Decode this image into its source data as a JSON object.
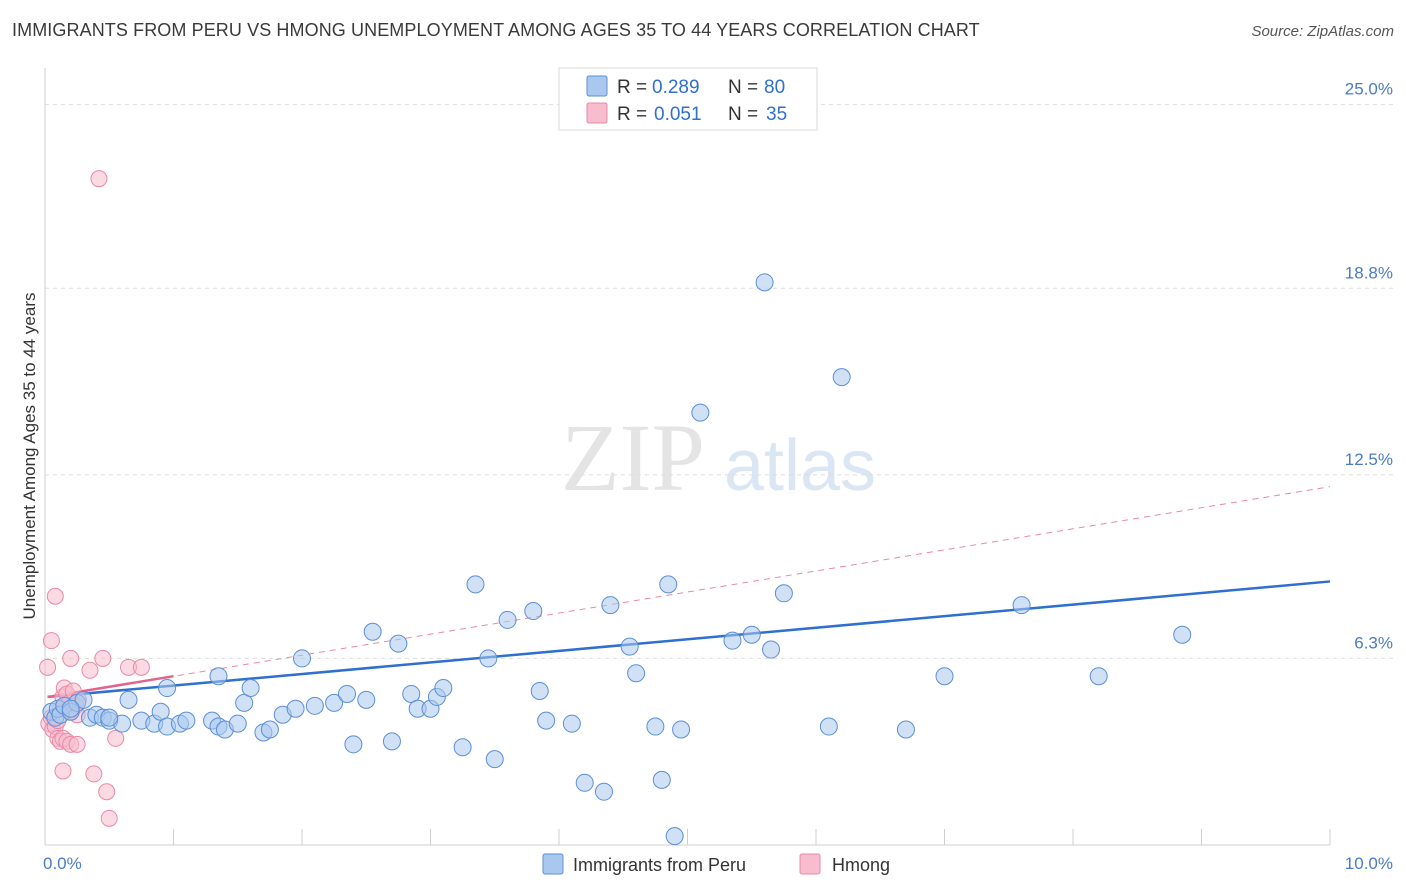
{
  "title": "IMMIGRANTS FROM PERU VS HMONG UNEMPLOYMENT AMONG AGES 35 TO 44 YEARS CORRELATION CHART",
  "source": "Source: ZipAtlas.com",
  "watermark": {
    "zip": "ZIP",
    "atlas": "atlas"
  },
  "colors": {
    "blue_fill": "#a9c8ef",
    "blue_stroke": "#5b8fd6",
    "blue_line": "#2f6fcf",
    "pink_fill": "#f7bccd",
    "pink_stroke": "#e889a6",
    "pink_line": "#e0648c",
    "grid": "#dddddd",
    "axis_label": "#4a7cc4"
  },
  "legend": {
    "series": [
      {
        "r_label": "R =",
        "r_value": "0.289",
        "n_label": "N =",
        "n_value": "80"
      },
      {
        "r_label": "R =",
        "r_value": "0.051",
        "n_label": "N =",
        "n_value": "35"
      }
    ]
  },
  "chart_data": {
    "type": "scatter",
    "title": "IMMIGRANTS FROM PERU VS HMONG UNEMPLOYMENT AMONG AGES 35 TO 44 YEARS CORRELATION CHART",
    "xlabel": "",
    "ylabel": "Unemployment Among Ages 35 to 44 years",
    "xlim": [
      0,
      10
    ],
    "ylim": [
      0,
      25.9
    ],
    "y_ticks": [
      6.3,
      12.5,
      18.8,
      25.0
    ],
    "y_tick_labels": [
      "6.3%",
      "12.5%",
      "18.8%",
      "25.0%"
    ],
    "x_tick_labels": [
      "0.0%",
      "10.0%"
    ],
    "grid": true,
    "legend_position": "top-center",
    "series": [
      {
        "name": "Immigrants from Peru",
        "color": "#a9c8ef",
        "trend": {
          "x0": 0.02,
          "y0": 5.0,
          "x1": 10.0,
          "y1": 8.9,
          "style": "solid"
        },
        "points": [
          [
            0.05,
            4.5
          ],
          [
            0.08,
            4.3
          ],
          [
            0.1,
            4.6
          ],
          [
            0.12,
            4.4
          ],
          [
            0.15,
            4.7
          ],
          [
            0.2,
            4.5
          ],
          [
            0.25,
            4.8
          ],
          [
            0.3,
            4.9
          ],
          [
            0.35,
            4.3
          ],
          [
            0.4,
            4.4
          ],
          [
            0.45,
            4.3
          ],
          [
            0.5,
            4.2
          ],
          [
            0.6,
            4.1
          ],
          [
            0.65,
            4.9
          ],
          [
            0.75,
            4.2
          ],
          [
            0.85,
            4.1
          ],
          [
            0.9,
            4.5
          ],
          [
            0.95,
            4.0
          ],
          [
            1.05,
            4.1
          ],
          [
            1.1,
            4.2
          ],
          [
            1.3,
            4.2
          ],
          [
            1.35,
            4.0
          ],
          [
            1.4,
            3.9
          ],
          [
            1.5,
            4.1
          ],
          [
            1.55,
            4.8
          ],
          [
            1.7,
            3.8
          ],
          [
            1.75,
            3.9
          ],
          [
            1.85,
            4.4
          ],
          [
            1.95,
            4.6
          ],
          [
            2.0,
            6.3
          ],
          [
            2.1,
            4.7
          ],
          [
            2.25,
            4.8
          ],
          [
            2.35,
            5.1
          ],
          [
            2.4,
            3.4
          ],
          [
            2.5,
            4.9
          ],
          [
            2.55,
            7.2
          ],
          [
            2.7,
            3.5
          ],
          [
            2.75,
            6.8
          ],
          [
            2.85,
            5.1
          ],
          [
            2.9,
            4.6
          ],
          [
            3.0,
            4.6
          ],
          [
            3.05,
            5.0
          ],
          [
            3.1,
            5.3
          ],
          [
            3.25,
            3.3
          ],
          [
            3.35,
            8.8
          ],
          [
            3.45,
            6.3
          ],
          [
            3.5,
            2.9
          ],
          [
            3.6,
            7.6
          ],
          [
            3.8,
            7.9
          ],
          [
            3.85,
            5.2
          ],
          [
            3.9,
            4.2
          ],
          [
            4.1,
            4.1
          ],
          [
            4.2,
            2.1
          ],
          [
            4.35,
            1.8
          ],
          [
            4.4,
            8.1
          ],
          [
            4.55,
            6.7
          ],
          [
            4.6,
            5.8
          ],
          [
            4.75,
            4.0
          ],
          [
            4.8,
            2.2
          ],
          [
            4.85,
            8.8
          ],
          [
            4.9,
            0.3
          ],
          [
            4.95,
            3.9
          ],
          [
            5.1,
            14.6
          ],
          [
            5.35,
            6.9
          ],
          [
            5.5,
            7.1
          ],
          [
            5.6,
            19.0
          ],
          [
            5.65,
            6.6
          ],
          [
            5.75,
            8.5
          ],
          [
            6.1,
            4.0
          ],
          [
            6.2,
            15.8
          ],
          [
            6.7,
            3.9
          ],
          [
            7.0,
            5.7
          ],
          [
            7.6,
            8.1
          ],
          [
            8.2,
            5.7
          ],
          [
            8.85,
            7.1
          ],
          [
            1.6,
            5.3
          ],
          [
            1.35,
            5.7
          ],
          [
            0.95,
            5.3
          ],
          [
            0.5,
            4.3
          ],
          [
            0.2,
            4.6
          ]
        ]
      },
      {
        "name": "Hmong",
        "color": "#f7bccd",
        "trend": {
          "x0": 0.02,
          "y0": 5.0,
          "x1": 1.0,
          "y1": 5.7,
          "style": "solid",
          "extension": {
            "x1": 10.0,
            "y1": 12.1,
            "style": "dashed"
          }
        },
        "points": [
          [
            0.02,
            6.0
          ],
          [
            0.03,
            4.1
          ],
          [
            0.05,
            4.3
          ],
          [
            0.06,
            3.9
          ],
          [
            0.08,
            4.0
          ],
          [
            0.1,
            4.2
          ],
          [
            0.12,
            4.6
          ],
          [
            0.14,
            5.0
          ],
          [
            0.15,
            5.3
          ],
          [
            0.17,
            5.1
          ],
          [
            0.19,
            4.8
          ],
          [
            0.2,
            4.5
          ],
          [
            0.22,
            5.2
          ],
          [
            0.24,
            4.7
          ],
          [
            0.26,
            4.9
          ],
          [
            0.05,
            6.9
          ],
          [
            0.08,
            8.4
          ],
          [
            0.1,
            3.6
          ],
          [
            0.12,
            3.5
          ],
          [
            0.14,
            3.6
          ],
          [
            0.17,
            3.5
          ],
          [
            0.2,
            3.4
          ],
          [
            0.25,
            3.4
          ],
          [
            0.14,
            2.5
          ],
          [
            0.2,
            6.3
          ],
          [
            0.25,
            4.4
          ],
          [
            0.35,
            5.9
          ],
          [
            0.38,
            2.4
          ],
          [
            0.45,
            6.3
          ],
          [
            0.48,
            1.8
          ],
          [
            0.5,
            0.9
          ],
          [
            0.55,
            3.6
          ],
          [
            0.65,
            6.0
          ],
          [
            0.75,
            6.0
          ],
          [
            0.42,
            22.5
          ]
        ]
      }
    ]
  }
}
